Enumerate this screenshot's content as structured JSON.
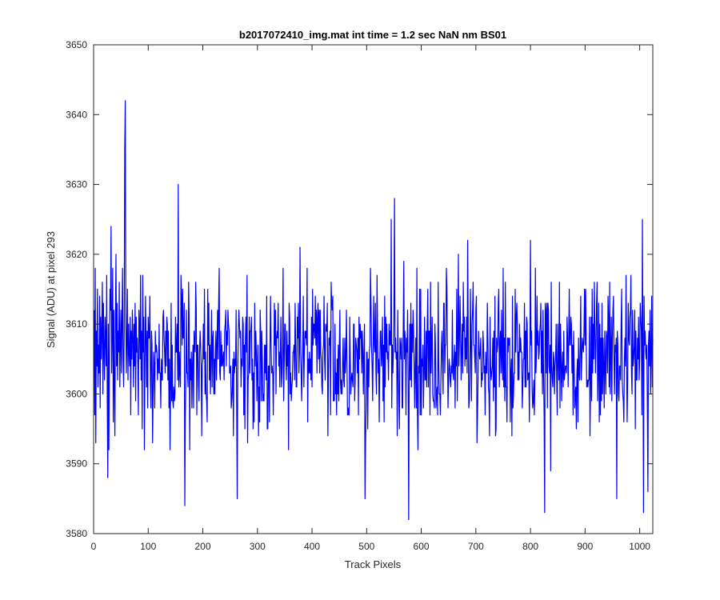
{
  "chart_data": {
    "type": "line",
    "title": "b2017072410_img.mat int time = 1.2 sec  NaN nm BS01",
    "xlabel": "Track Pixels",
    "ylabel": "Signal (ADU) at pixel 293",
    "xlim": [
      0,
      1024
    ],
    "ylim": [
      3580,
      3650
    ],
    "xticks": [
      0,
      100,
      200,
      300,
      400,
      500,
      600,
      700,
      800,
      900,
      1000
    ],
    "yticks": [
      3580,
      3590,
      3600,
      3610,
      3620,
      3630,
      3640,
      3650
    ],
    "grid": false,
    "legend": "none",
    "line_color": "#0000ff",
    "series": [
      {
        "x_start": 1,
        "x_step": 1,
        "values": [
          3612,
          3597,
          3618,
          3593,
          3609,
          3604,
          3615,
          3601,
          3607,
          3603,
          3614,
          3598,
          3611,
          3605,
          3609,
          3616,
          3600,
          3613,
          3606,
          3602,
          3611,
          3608,
          3604,
          3617,
          3599,
          3588,
          3610,
          3592,
          3605,
          3615,
          3612,
          3624,
          3603,
          3609,
          3618,
          3596,
          3612,
          3601,
          3594,
          3611,
          3620,
          3604,
          3613,
          3602,
          3609,
          3606,
          3616,
          3601,
          3607,
          3612,
          3603,
          3610,
          3618,
          3605,
          3601,
          3609,
          3635,
          3642,
          3611,
          3603,
          3608,
          3615,
          3602,
          3610,
          3606,
          3604,
          3611,
          3597,
          3609,
          3605,
          3612,
          3608,
          3601,
          3610,
          3604,
          3613,
          3599,
          3611,
          3606,
          3608,
          3604,
          3597,
          3612,
          3610,
          3605,
          3617,
          3602,
          3609,
          3595,
          3617,
          3606,
          3611,
          3592,
          3604,
          3614,
          3608,
          3601,
          3609,
          3598,
          3611
        ],
        "note_values": ""
      }
    ]
  }
}
